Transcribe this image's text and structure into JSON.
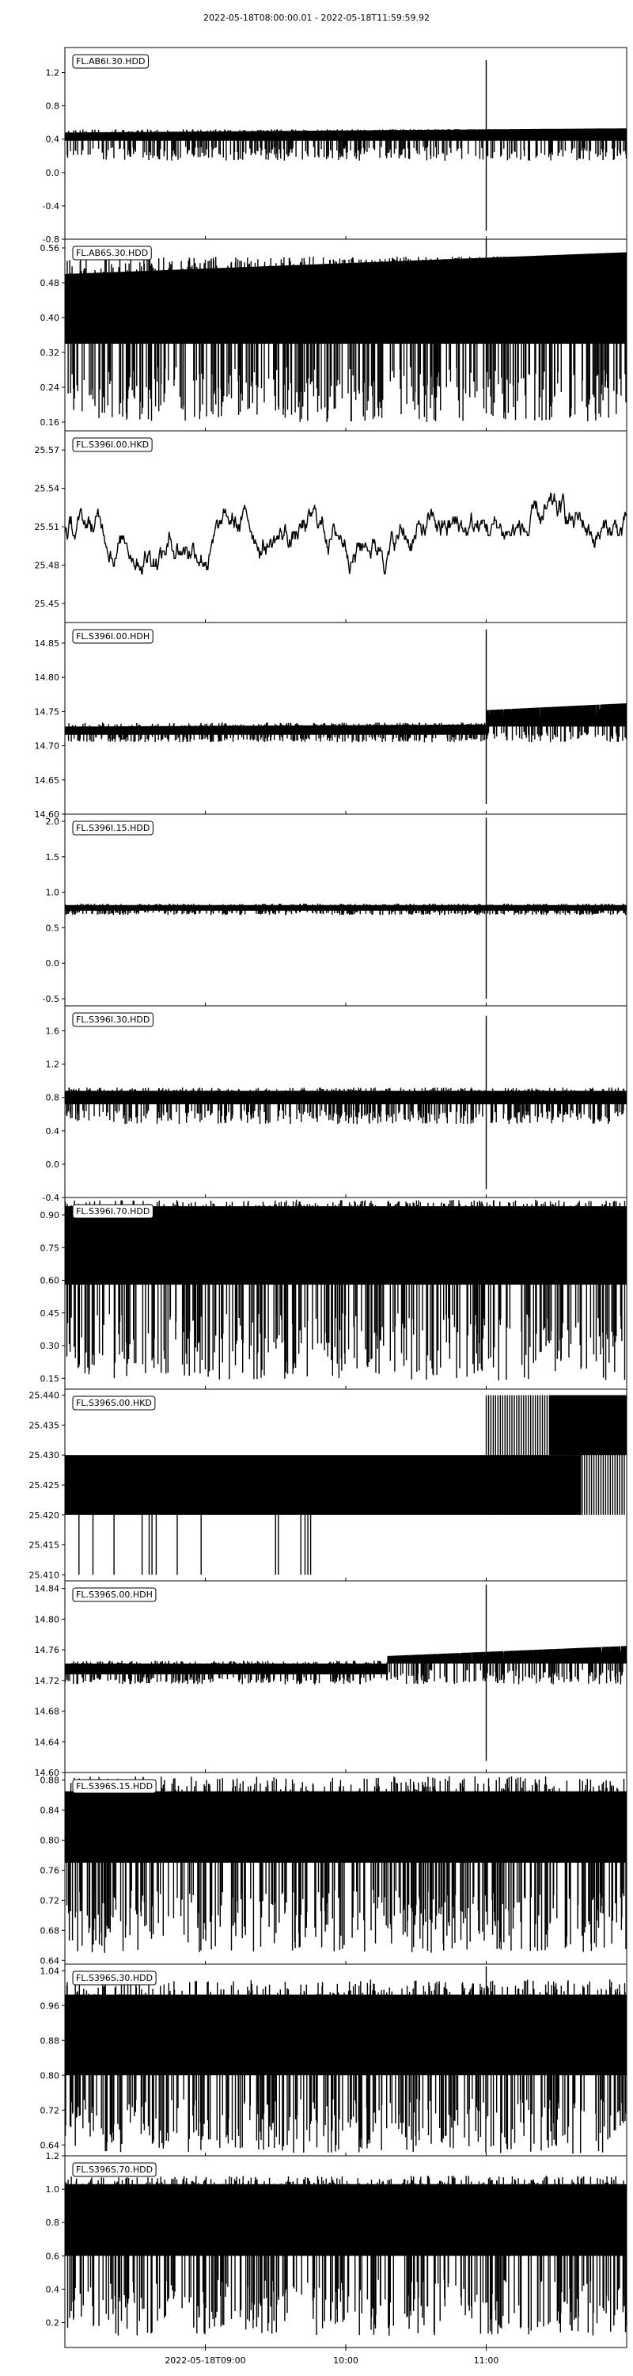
{
  "title": "2022-05-18T08:00:00.01  -  2022-05-18T11:59:59.92",
  "colors": {
    "trace": "#000000",
    "axes": "#000000",
    "background": "#ffffff"
  },
  "x_ticks": [
    {
      "label": "2022-05-18T09:00",
      "hours": 1.0
    },
    {
      "label": "10:00",
      "hours": 2.0
    },
    {
      "label": "11:00",
      "hours": 3.0
    }
  ],
  "chart_data": [
    {
      "type": "line",
      "station": "FL.AB6I.30.HDD",
      "ylim": [
        -0.8,
        1.5
      ],
      "yticks": [
        {
          "label": "1.2",
          "v": 1.2
        },
        {
          "label": "0.8",
          "v": 0.8
        },
        {
          "label": "0.4",
          "v": 0.4
        },
        {
          "label": "0.0",
          "v": 0.0
        },
        {
          "label": "-0.4",
          "v": -0.4
        },
        {
          "label": "-0.8",
          "v": -0.8
        }
      ],
      "band": {
        "low": 0.38,
        "high": 0.48,
        "end_high": 0.53,
        "dip_min": 0.14,
        "spike_max": 0.52
      },
      "event": {
        "hours": 3.0,
        "max": 1.35,
        "min": -0.7
      },
      "step": null
    },
    {
      "type": "line",
      "station": "FL.AB6S.30.HDD",
      "ylim": [
        0.14,
        0.58
      ],
      "yticks": [
        {
          "label": "0.56",
          "v": 0.56
        },
        {
          "label": "0.48",
          "v": 0.48
        },
        {
          "label": "0.40",
          "v": 0.4
        },
        {
          "label": "0.32",
          "v": 0.32
        },
        {
          "label": "0.24",
          "v": 0.24
        },
        {
          "label": "0.16",
          "v": 0.16
        }
      ],
      "band": {
        "low": 0.34,
        "high": 0.5,
        "end_high": 0.55,
        "dip_min": 0.16,
        "spike_max": 0.54
      },
      "event": {
        "hours": 3.0,
        "max": 0.58,
        "min": 0.18
      },
      "step": null
    },
    {
      "type": "line",
      "station": "FL.S396I.00.HKD",
      "ylim": [
        25.435,
        25.585
      ],
      "yticks": [
        {
          "label": "25.57",
          "v": 25.57
        },
        {
          "label": "25.54",
          "v": 25.54
        },
        {
          "label": "25.51",
          "v": 25.51
        },
        {
          "label": "25.48",
          "v": 25.48
        },
        {
          "label": "25.45",
          "v": 25.45
        }
      ],
      "wander": {
        "center": 25.505,
        "amplitude": 0.045,
        "min": 25.44,
        "max": 25.58
      },
      "event": null,
      "step": null
    },
    {
      "type": "line",
      "station": "FL.S396I.00.HDH",
      "ylim": [
        14.6,
        14.88
      ],
      "yticks": [
        {
          "label": "14.85",
          "v": 14.85
        },
        {
          "label": "14.80",
          "v": 14.8
        },
        {
          "label": "14.75",
          "v": 14.75
        },
        {
          "label": "14.70",
          "v": 14.7
        },
        {
          "label": "14.65",
          "v": 14.65
        },
        {
          "label": "14.60",
          "v": 14.6
        }
      ],
      "band": {
        "low": 14.716,
        "high": 14.728,
        "end_high": 14.732,
        "dip_min": 14.705,
        "spike_max": 14.734
      },
      "step": {
        "hours": 3.0,
        "low": 14.728,
        "high": 14.752,
        "end_high": 14.762
      },
      "event": {
        "hours": 3.0,
        "max": 14.87,
        "min": 14.615
      }
    },
    {
      "type": "line",
      "station": "FL.S396I.15.HDD",
      "ylim": [
        -0.6,
        2.1
      ],
      "yticks": [
        {
          "label": "2.0",
          "v": 2.0
        },
        {
          "label": "1.5",
          "v": 1.5
        },
        {
          "label": "1.0",
          "v": 1.0
        },
        {
          "label": "0.5",
          "v": 0.5
        },
        {
          "label": "0.0",
          "v": 0.0
        },
        {
          "label": "-0.5",
          "v": -0.5
        }
      ],
      "band": {
        "low": 0.74,
        "high": 0.82,
        "end_high": 0.82,
        "dip_min": 0.68,
        "spike_max": 0.84
      },
      "event": {
        "hours": 3.0,
        "max": 2.05,
        "min": -0.5
      },
      "step": null
    },
    {
      "type": "line",
      "station": "FL.S396I.30.HDD",
      "ylim": [
        -0.4,
        1.9
      ],
      "yticks": [
        {
          "label": "1.6",
          "v": 1.6
        },
        {
          "label": "1.2",
          "v": 1.2
        },
        {
          "label": "0.8",
          "v": 0.8
        },
        {
          "label": "0.4",
          "v": 0.4
        },
        {
          "label": "0.0",
          "v": 0.0
        },
        {
          "label": "-0.4",
          "v": -0.4
        }
      ],
      "band": {
        "low": 0.72,
        "high": 0.88,
        "end_high": 0.88,
        "dip_min": 0.48,
        "spike_max": 0.92
      },
      "event": {
        "hours": 3.0,
        "max": 1.78,
        "min": -0.3
      },
      "step": null
    },
    {
      "type": "line",
      "station": "FL.S396I.70.HDD",
      "ylim": [
        0.1,
        0.98
      ],
      "yticks": [
        {
          "label": "0.90",
          "v": 0.9
        },
        {
          "label": "0.75",
          "v": 0.75
        },
        {
          "label": "0.60",
          "v": 0.6
        },
        {
          "label": "0.45",
          "v": 0.45
        },
        {
          "label": "0.30",
          "v": 0.3
        },
        {
          "label": "0.15",
          "v": 0.15
        }
      ],
      "band": {
        "low": 0.58,
        "high": 0.94,
        "end_high": 0.94,
        "dip_min": 0.14,
        "spike_max": 0.97
      },
      "event": null,
      "step": null
    },
    {
      "type": "line",
      "station": "FL.S396S.00.HKD",
      "ylim": [
        25.409,
        25.441
      ],
      "yticks": [
        {
          "label": "25.440",
          "v": 25.44
        },
        {
          "label": "25.435",
          "v": 25.435
        },
        {
          "label": "25.430",
          "v": 25.43
        },
        {
          "label": "25.425",
          "v": 25.425
        },
        {
          "label": "25.420",
          "v": 25.42
        },
        {
          "label": "25.415",
          "v": 25.415
        },
        {
          "label": "25.410",
          "v": 25.41
        }
      ],
      "binary": {
        "low": 25.42,
        "high": 25.43,
        "upper": 25.44,
        "drop": 25.41,
        "switch_hours": 3.0
      },
      "event": null,
      "step": null
    },
    {
      "type": "line",
      "station": "FL.S396S.00.HDH",
      "ylim": [
        14.6,
        14.85
      ],
      "yticks": [
        {
          "label": "14.84",
          "v": 14.84
        },
        {
          "label": "14.80",
          "v": 14.8
        },
        {
          "label": "14.76",
          "v": 14.76
        },
        {
          "label": "14.72",
          "v": 14.72
        },
        {
          "label": "14.68",
          "v": 14.68
        },
        {
          "label": "14.64",
          "v": 14.64
        },
        {
          "label": "14.60",
          "v": 14.6
        }
      ],
      "band": {
        "low": 14.728,
        "high": 14.742,
        "end_high": 14.742,
        "dip_min": 14.715,
        "spike_max": 14.746
      },
      "step": {
        "hours": 2.3,
        "low": 14.742,
        "high": 14.752,
        "end_high": 14.765
      },
      "event": {
        "hours": 3.0,
        "max": 14.845,
        "min": 14.615
      }
    },
    {
      "type": "line",
      "station": "FL.S396S.15.HDD",
      "ylim": [
        0.635,
        0.89
      ],
      "yticks": [
        {
          "label": "0.88",
          "v": 0.88
        },
        {
          "label": "0.84",
          "v": 0.84
        },
        {
          "label": "0.80",
          "v": 0.8
        },
        {
          "label": "0.76",
          "v": 0.76
        },
        {
          "label": "0.72",
          "v": 0.72
        },
        {
          "label": "0.68",
          "v": 0.68
        },
        {
          "label": "0.64",
          "v": 0.64
        }
      ],
      "band": {
        "low": 0.77,
        "high": 0.865,
        "end_high": 0.865,
        "dip_min": 0.65,
        "spike_max": 0.885
      },
      "event": null,
      "step": null
    },
    {
      "type": "line",
      "station": "FL.S396S.30.HDD",
      "ylim": [
        0.615,
        1.055
      ],
      "yticks": [
        {
          "label": "1.04",
          "v": 1.04
        },
        {
          "label": "0.96",
          "v": 0.96
        },
        {
          "label": "0.88",
          "v": 0.88
        },
        {
          "label": "0.80",
          "v": 0.8
        },
        {
          "label": "0.72",
          "v": 0.72
        },
        {
          "label": "0.64",
          "v": 0.64
        }
      ],
      "band": {
        "low": 0.8,
        "high": 0.985,
        "end_high": 0.985,
        "dip_min": 0.62,
        "spike_max": 1.02
      },
      "event": {
        "hours": 3.0,
        "max": 1.05,
        "min": 0.7
      },
      "step": null
    },
    {
      "type": "line",
      "station": "FL.S396S.70.HDD",
      "ylim": [
        0.05,
        1.2
      ],
      "yticks": [
        {
          "label": "1.2",
          "v": 1.2
        },
        {
          "label": "1.0",
          "v": 1.0
        },
        {
          "label": "0.8",
          "v": 0.8
        },
        {
          "label": "0.6",
          "v": 0.6
        },
        {
          "label": "0.4",
          "v": 0.4
        },
        {
          "label": "0.2",
          "v": 0.2
        }
      ],
      "band": {
        "low": 0.6,
        "high": 1.03,
        "end_high": 1.03,
        "dip_min": 0.12,
        "spike_max": 1.08
      },
      "event": null,
      "step": null
    }
  ]
}
